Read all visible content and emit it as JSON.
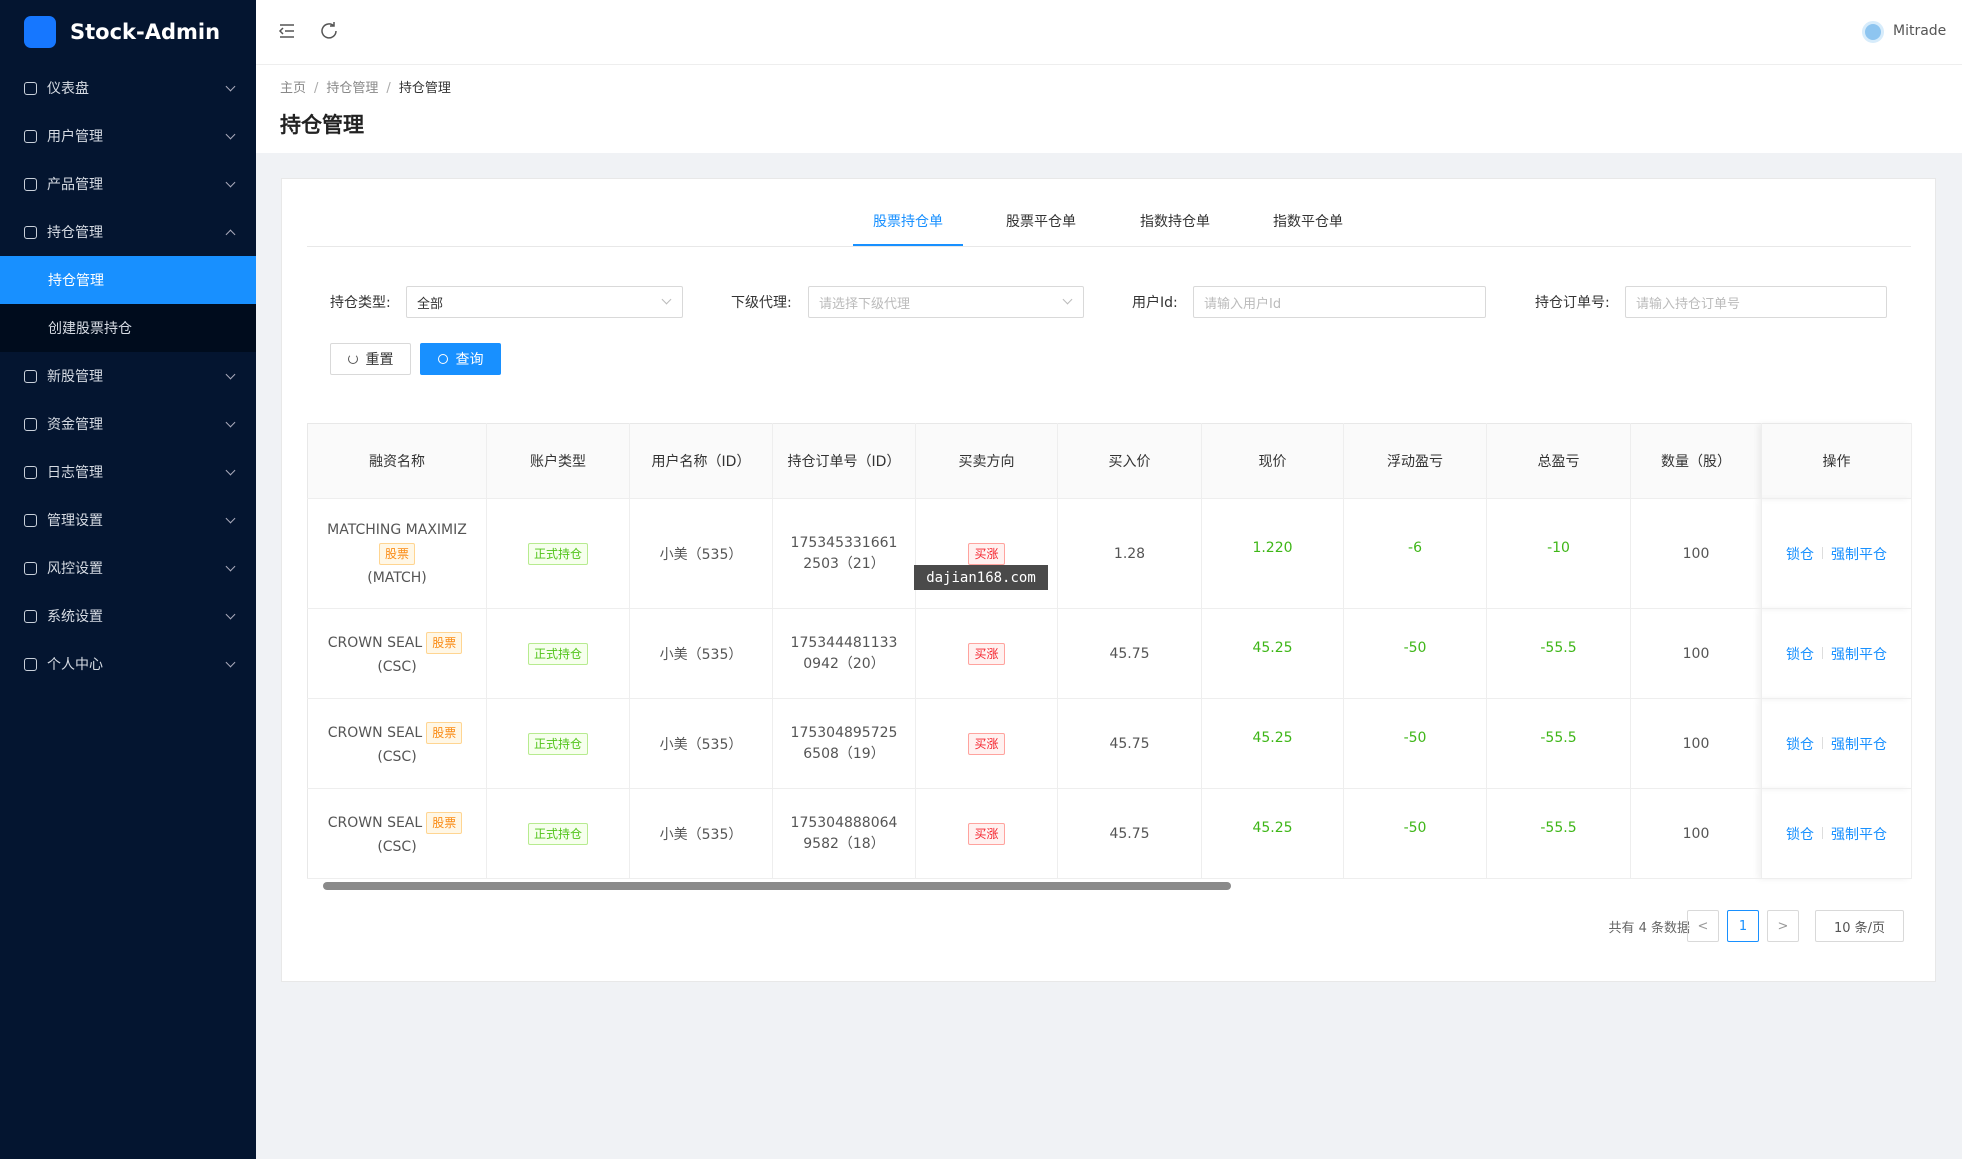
{
  "sidebar": {
    "brand": "Stock-Admin",
    "menu": [
      {
        "label": "仪表盘"
      },
      {
        "label": "用户管理"
      },
      {
        "label": "产品管理"
      },
      {
        "label": "持仓管理",
        "open": true,
        "children": [
          {
            "label": "持仓管理",
            "active": true
          },
          {
            "label": "创建股票持仓"
          }
        ]
      },
      {
        "label": "新股管理"
      },
      {
        "label": "资金管理"
      },
      {
        "label": "日志管理"
      },
      {
        "label": "管理设置"
      },
      {
        "label": "风控设置"
      },
      {
        "label": "系统设置"
      },
      {
        "label": "个人中心"
      }
    ]
  },
  "header": {
    "user": "Mitrade"
  },
  "breadcrumb": {
    "items": [
      "主页",
      "持仓管理",
      "持仓管理"
    ],
    "separator": "/"
  },
  "page_title": "持仓管理",
  "tabs": {
    "items": [
      "股票持仓单",
      "股票平仓单",
      "指数持仓单",
      "指数平仓单"
    ],
    "active": 0
  },
  "filters": [
    {
      "label": "持仓类型:",
      "value": "全部"
    },
    {
      "label": "下级代理:",
      "placeholder": "请选择下级代理"
    },
    {
      "label": "用户Id:",
      "placeholder": "请输入用户Id"
    },
    {
      "label": "持仓订单号:",
      "placeholder": "请输入持仓订单号"
    }
  ],
  "buttons": {
    "reset": "重置",
    "query": "查询"
  },
  "table": {
    "columns": [
      "融资名称",
      "账户类型",
      "用户名称（ID）",
      "持仓订单号（ID）",
      "买卖方向",
      "买入价",
      "现价",
      "浮动盈亏",
      "总盈亏",
      "数量（股）",
      "操作"
    ],
    "rows": [
      {
        "name": "MATCHING MAXIMIZ",
        "tag": "股票",
        "code": "(MATCH)",
        "account_type": "正式持仓",
        "user": "小美（535）",
        "order_no": "1753453316612503（21）",
        "direction": "买涨",
        "buy_price": "1.28",
        "current_price": "1.220",
        "float_pl": "-6",
        "total_pl": "-10",
        "quantity": "100",
        "actions": [
          "锁仓",
          "强制平仓"
        ]
      },
      {
        "name": "CROWN SEAL",
        "tag": "股票",
        "code": "(CSC)",
        "account_type": "正式持仓",
        "user": "小美（535）",
        "order_no": "1753444811330942（20）",
        "direction": "买涨",
        "buy_price": "45.75",
        "current_price": "45.25",
        "float_pl": "-50",
        "total_pl": "-55.5",
        "quantity": "100",
        "actions": [
          "锁仓",
          "强制平仓"
        ]
      },
      {
        "name": "CROWN SEAL",
        "tag": "股票",
        "code": "(CSC)",
        "account_type": "正式持仓",
        "user": "小美（535）",
        "order_no": "1753048957256508（19）",
        "direction": "买涨",
        "buy_price": "45.75",
        "current_price": "45.25",
        "float_pl": "-50",
        "total_pl": "-55.5",
        "quantity": "100",
        "actions": [
          "锁仓",
          "强制平仓"
        ]
      },
      {
        "name": "CROWN SEAL",
        "tag": "股票",
        "code": "(CSC)",
        "account_type": "正式持仓",
        "user": "小美（535）",
        "order_no": "1753048880649582（18）",
        "direction": "买涨",
        "buy_price": "45.75",
        "current_price": "45.25",
        "float_pl": "-50",
        "total_pl": "-55.5",
        "quantity": "100",
        "actions": [
          "锁仓",
          "强制平仓"
        ]
      }
    ]
  },
  "pagination": {
    "total_text": "共有 4 条数据",
    "prev": "<",
    "page": "1",
    "next": ">",
    "page_size": "10 条/页"
  },
  "watermark": "dajian168.com"
}
